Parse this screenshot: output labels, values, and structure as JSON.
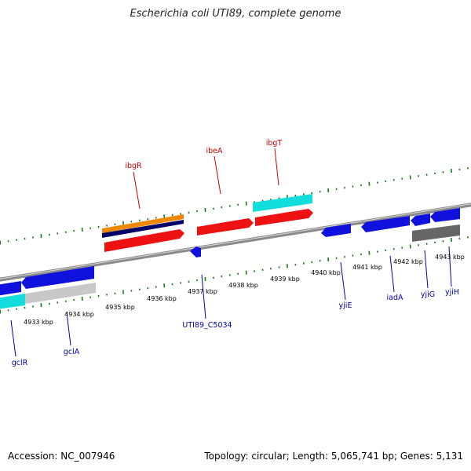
{
  "title": "Escherichia coli UTI89, complete genome",
  "footer": {
    "accession": "Accession: NC_007946",
    "summary": "Topology: circular; Length: 5,065,741 bp; Genes: 5,131"
  },
  "kbp_labels": [
    "4933 kbp",
    "4934 kbp",
    "4935 kbp",
    "4936 kbp",
    "4937 kbp",
    "4938 kbp",
    "4939 kbp",
    "4940 kbp",
    "4941 kbp",
    "4942 kbp",
    "4943 kbp"
  ],
  "gene_labels_top": [
    "ibgR",
    "ibeA",
    "ibgT"
  ],
  "gene_labels_bottom": [
    "gclR",
    "gclA",
    "UTI89_C5034",
    "yjiE",
    "iadA",
    "yjiG",
    "yjiH"
  ],
  "colors": {
    "tick": "#1a7a1a",
    "backbone": "#8a8a8a",
    "top_label": "#cc0000",
    "bottom_label": "#0000aa",
    "red": "#ee1111",
    "blue": "#1111dd",
    "cyan": "#11dddd",
    "orange": "#ee8800",
    "navy": "#000066",
    "gray": "#666666",
    "lightgray": "#c8c8c8"
  }
}
